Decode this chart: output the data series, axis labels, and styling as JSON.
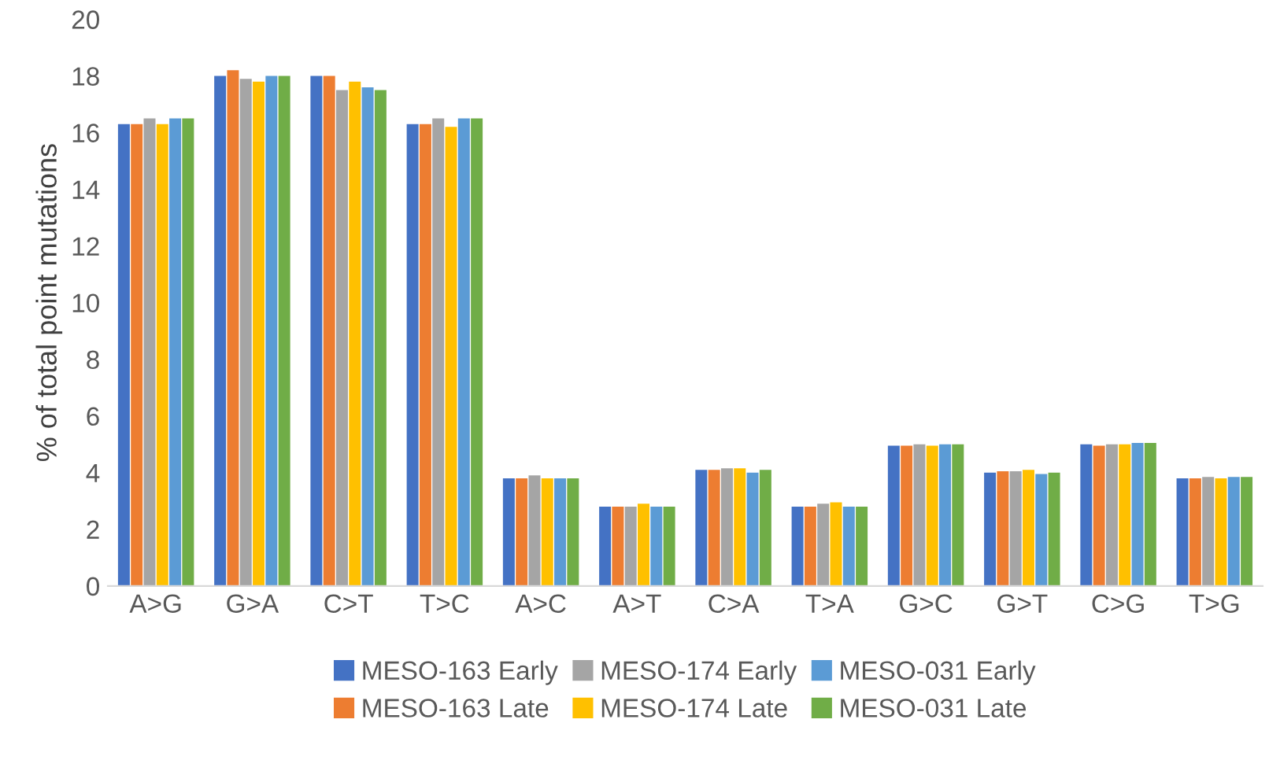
{
  "chart_data": {
    "type": "bar",
    "ylabel": "% of total point mutations",
    "categories": [
      "A>G",
      "G>A",
      "C>T",
      "T>C",
      "A>C",
      "A>T",
      "C>A",
      "T>A",
      "G>C",
      "G>T",
      "C>G",
      "T>G"
    ],
    "series": [
      {
        "name": "MESO-163 Early",
        "color": "#4472c4",
        "values": [
          16.3,
          18.0,
          18.0,
          16.3,
          3.8,
          2.8,
          4.1,
          2.8,
          4.95,
          4.0,
          5.0,
          3.8
        ]
      },
      {
        "name": "MESO-163 Late",
        "color": "#ed7d31",
        "values": [
          16.3,
          18.2,
          18.0,
          16.3,
          3.8,
          2.8,
          4.1,
          2.8,
          4.95,
          4.05,
          4.95,
          3.8
        ]
      },
      {
        "name": "MESO-174 Early",
        "color": "#a5a5a5",
        "values": [
          16.5,
          17.9,
          17.5,
          16.5,
          3.9,
          2.8,
          4.15,
          2.9,
          5.0,
          4.05,
          5.0,
          3.85
        ]
      },
      {
        "name": "MESO-174 Late",
        "color": "#ffc000",
        "values": [
          16.3,
          17.8,
          17.8,
          16.2,
          3.8,
          2.9,
          4.15,
          2.95,
          4.95,
          4.1,
          5.0,
          3.8
        ]
      },
      {
        "name": "MESO-031 Early",
        "color": "#5b9bd5",
        "values": [
          16.5,
          18.0,
          17.6,
          16.5,
          3.8,
          2.8,
          4.0,
          2.8,
          5.0,
          3.95,
          5.05,
          3.85
        ]
      },
      {
        "name": "MESO-031 Late",
        "color": "#70ad47",
        "values": [
          16.5,
          18.0,
          17.5,
          16.5,
          3.8,
          2.8,
          4.1,
          2.8,
          5.0,
          4.0,
          5.05,
          3.85
        ]
      }
    ],
    "ylim": [
      0,
      20
    ],
    "yticks": [
      0,
      2,
      4,
      6,
      8,
      10,
      12,
      14,
      16,
      18,
      20
    ],
    "grid": false,
    "legend": "bottom"
  }
}
